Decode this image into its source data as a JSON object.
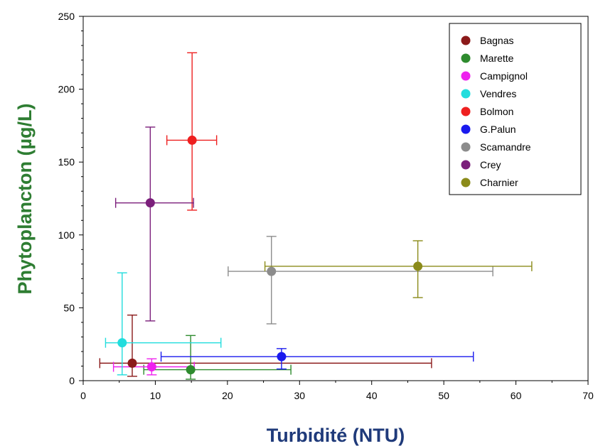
{
  "chart_data": {
    "type": "scatter",
    "title": "",
    "xlabel": "Turbidité (NTU)",
    "ylabel": "Phytoplancton (µg/L)",
    "xlabel_color": "#1f3a7a",
    "ylabel_color": "#2e7d32",
    "xlim": [
      0,
      70
    ],
    "ylim": [
      0,
      250
    ],
    "xticks": [
      "0",
      "10",
      "20",
      "30",
      "40",
      "50",
      "60",
      "70"
    ],
    "yticks": [
      "0",
      "50",
      "100",
      "150",
      "200",
      "250"
    ],
    "grid": false,
    "legend_position": "top-right",
    "error_bars": true,
    "series": [
      {
        "name": "Bagnas",
        "color": "#8b1a1a",
        "x": 6.8,
        "y": 12,
        "x_err": [
          2.3,
          48.3
        ],
        "y_err": [
          3,
          45
        ]
      },
      {
        "name": "Marette",
        "color": "#2e8b2e",
        "x": 14.9,
        "y": 7.5,
        "x_err": [
          8.4,
          28.8
        ],
        "y_err": [
          1,
          31
        ]
      },
      {
        "name": "Campignol",
        "color": "#ee22ee",
        "x": 9.5,
        "y": 9.5,
        "x_err": [
          4.2,
          15.4
        ],
        "y_err": [
          4,
          15
        ]
      },
      {
        "name": "Vendres",
        "color": "#22dddd",
        "x": 5.4,
        "y": 26,
        "x_err": [
          3.1,
          19.1
        ],
        "y_err": [
          4,
          74
        ]
      },
      {
        "name": "Bolmon",
        "color": "#ee2020",
        "x": 15.1,
        "y": 165,
        "x_err": [
          11.6,
          18.5
        ],
        "y_err": [
          117,
          225
        ]
      },
      {
        "name": "G.Palun",
        "color": "#1a1aee",
        "x": 27.5,
        "y": 16.5,
        "x_err": [
          10.8,
          54.1
        ],
        "y_err": [
          8,
          22
        ]
      },
      {
        "name": "Scamandre",
        "color": "#8c8c8c",
        "x": 26.1,
        "y": 75,
        "x_err": [
          20.1,
          56.8
        ],
        "y_err": [
          39,
          99
        ]
      },
      {
        "name": "Crey",
        "color": "#7b1f7b",
        "x": 9.3,
        "y": 122,
        "x_err": [
          4.5,
          15.3
        ],
        "y_err": [
          41,
          174
        ]
      },
      {
        "name": "Charnier",
        "color": "#8b8b1a",
        "x": 46.4,
        "y": 78.5,
        "x_err": [
          25.2,
          62.2
        ],
        "y_err": [
          57,
          96
        ]
      }
    ]
  }
}
